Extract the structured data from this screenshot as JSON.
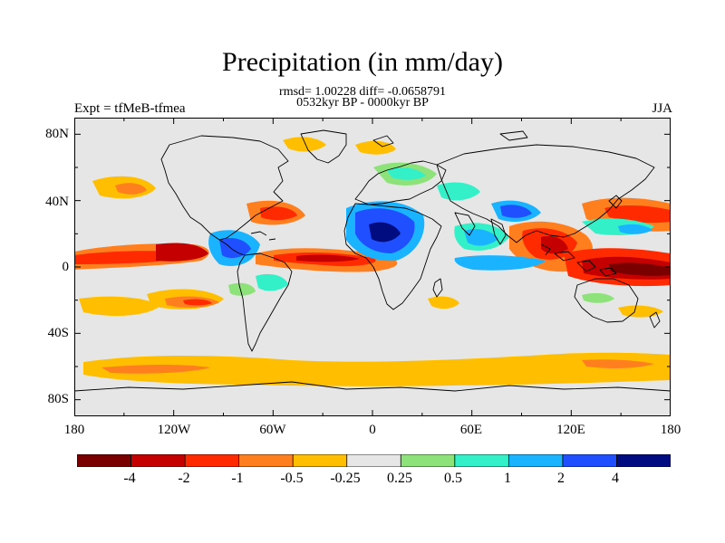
{
  "title": "Precipitation (in mm/day)",
  "stats_line": "rmsd= 1.00228 diff= -0.0658791",
  "period_line": "0532kyr BP - 0000kyr BP",
  "left_label": "Expt = tfMeB-tfmea",
  "right_label": "JJA",
  "y_ticks": [
    "80N",
    "40N",
    "0",
    "40S",
    "80S"
  ],
  "x_ticks": [
    "180",
    "120W",
    "60W",
    "0",
    "60E",
    "120E",
    "180"
  ],
  "colorbar": {
    "colors": [
      "#7a0000",
      "#c40000",
      "#ff2a00",
      "#ff7f1f",
      "#ffbf00",
      "#e6e6e6",
      "#8ee27a",
      "#33f0c8",
      "#1ab3ff",
      "#1f4fff",
      "#000c80"
    ],
    "labels": [
      "-4",
      "-2",
      "-1",
      "-0.5",
      "-0.25",
      "0.25",
      "0.5",
      "1",
      "2",
      "4"
    ]
  },
  "colors": {
    "background": "#e6e6e6",
    "coastline": "#000000"
  }
}
